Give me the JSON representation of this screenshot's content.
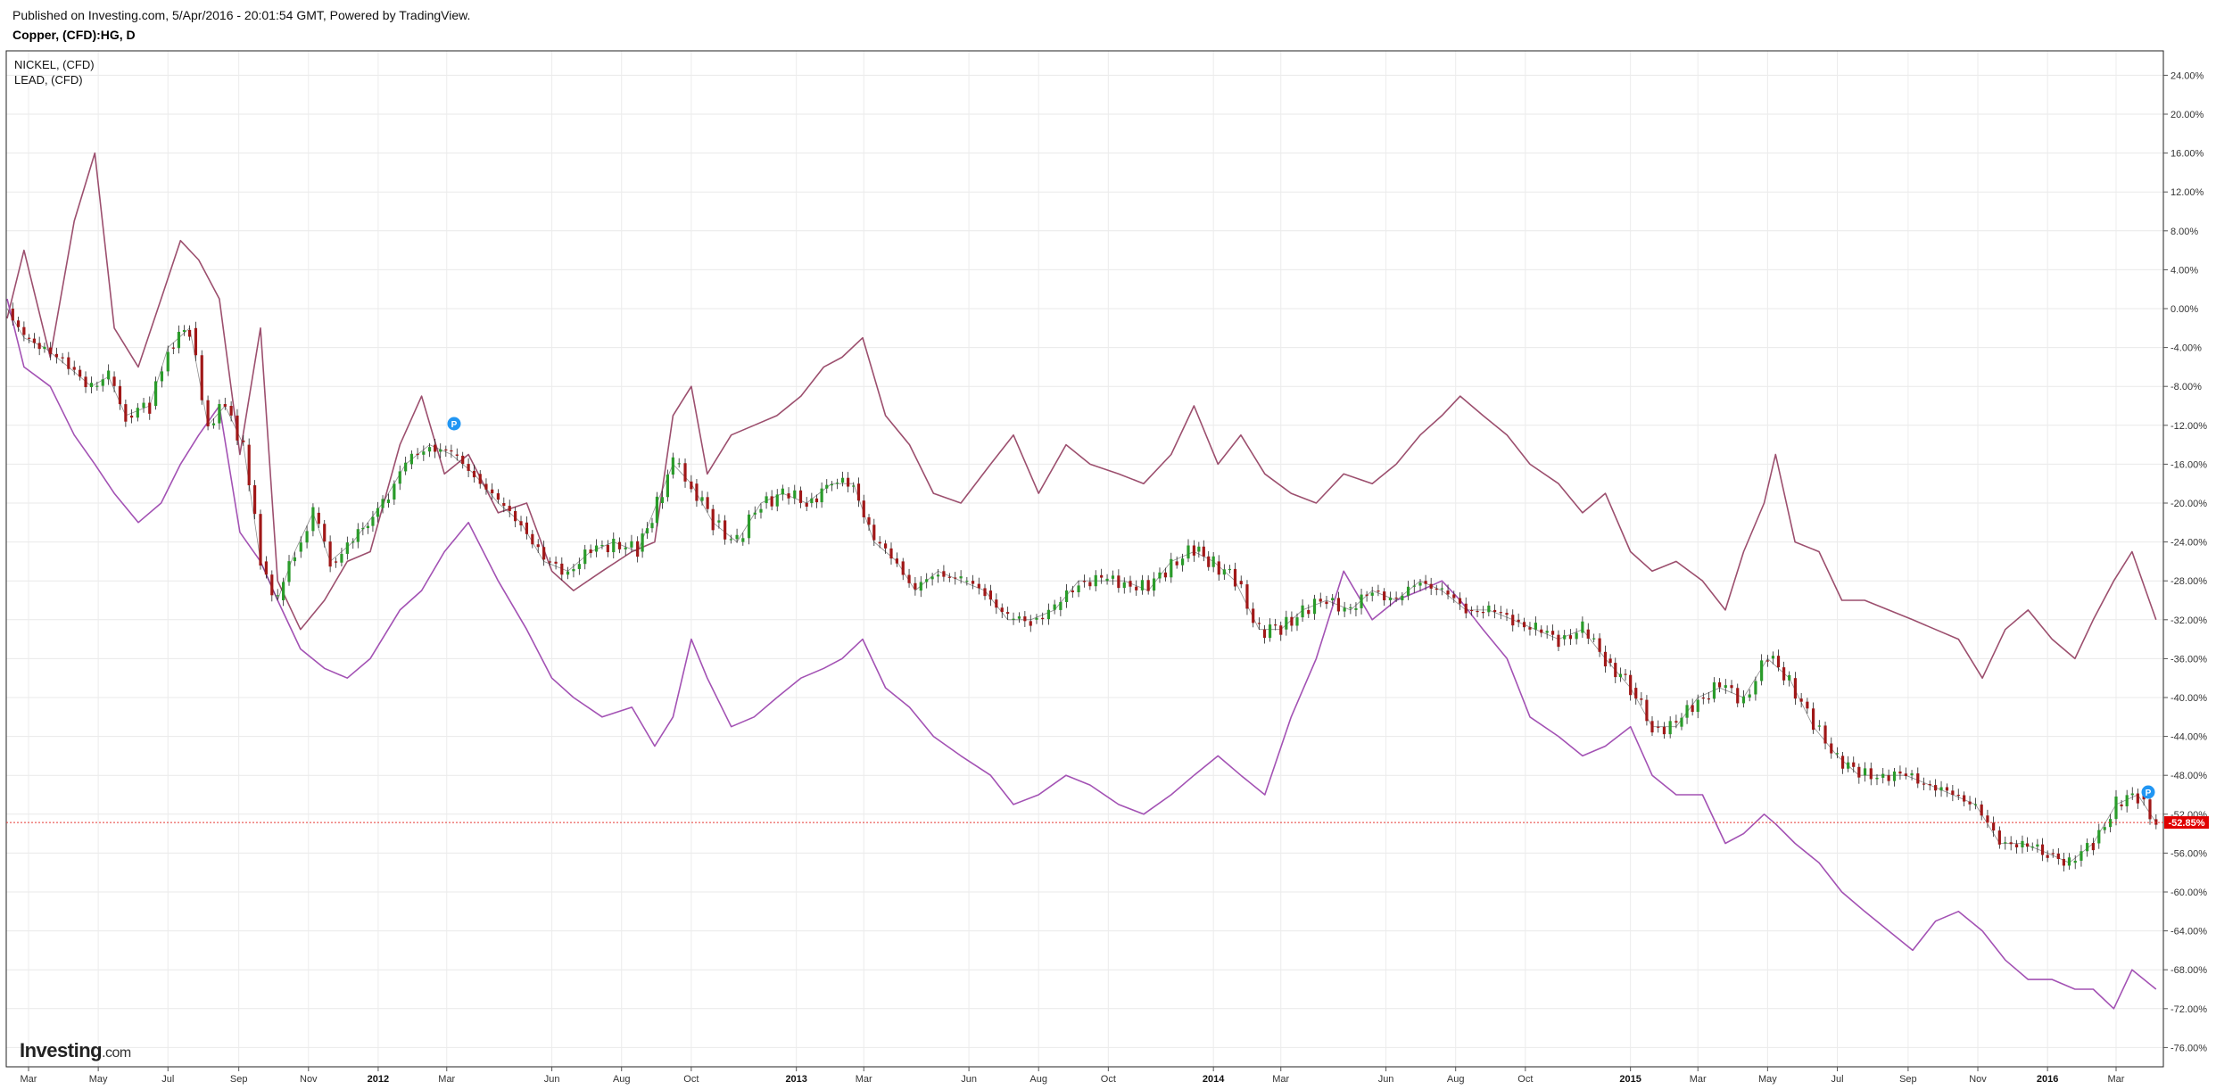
{
  "header": {
    "published": "Published on Investing.com, 5/Apr/2016 - 20:01:54 GMT, Powered by TradingView.",
    "symbol": "Copper, (CFD):HG, D"
  },
  "legend": {
    "items": [
      "NICKEL,  (CFD)",
      "LEAD,  (CFD)"
    ]
  },
  "logo": {
    "brand": "Investing",
    "suffix": ".com"
  },
  "last_value_label": "-52.85%",
  "chart_data": {
    "type": "line",
    "title": "Copper, (CFD):HG, D",
    "xlabel": "",
    "ylabel": "",
    "y_unit": "%",
    "ylim": [
      -78,
      26
    ],
    "y_ticks": [
      24,
      20,
      16,
      12,
      8,
      4,
      0,
      -4,
      -8,
      -12,
      -16,
      -20,
      -24,
      -28,
      -32,
      -36,
      -40,
      -44,
      -48,
      -52,
      -56,
      -60,
      -64,
      -68,
      -72,
      -76
    ],
    "y_tick_labels": [
      "24.00%",
      "20.00%",
      "16.00%",
      "12.00%",
      "8.00%",
      "4.00%",
      "0.00%",
      "-4.00%",
      "-8.00%",
      "-12.00%",
      "-16.00%",
      "-20.00%",
      "-24.00%",
      "-28.00%",
      "-32.00%",
      "-36.00%",
      "-40.00%",
      "-44.00%",
      "-48.00%",
      "-52.00%",
      "-56.00%",
      "-60.00%",
      "-64.00%",
      "-68.00%",
      "-72.00%",
      "-76.00%"
    ],
    "x_ticks": [
      {
        "label": "Mar",
        "date": "2011-03-01"
      },
      {
        "label": "May",
        "date": "2011-05-01"
      },
      {
        "label": "Jul",
        "date": "2011-07-01"
      },
      {
        "label": "Sep",
        "date": "2011-09-01"
      },
      {
        "label": "Nov",
        "date": "2011-11-01"
      },
      {
        "label": "2012",
        "date": "2012-01-01",
        "year": true
      },
      {
        "label": "Mar",
        "date": "2012-03-01"
      },
      {
        "label": "Jun",
        "date": "2012-06-01"
      },
      {
        "label": "Aug",
        "date": "2012-08-01"
      },
      {
        "label": "Oct",
        "date": "2012-10-01"
      },
      {
        "label": "2013",
        "date": "2013-01-01",
        "year": true
      },
      {
        "label": "Mar",
        "date": "2013-03-01"
      },
      {
        "label": "Jun",
        "date": "2013-06-01"
      },
      {
        "label": "Aug",
        "date": "2013-08-01"
      },
      {
        "label": "Oct",
        "date": "2013-10-01"
      },
      {
        "label": "2014",
        "date": "2014-01-01",
        "year": true
      },
      {
        "label": "Mar",
        "date": "2014-03-01"
      },
      {
        "label": "Jun",
        "date": "2014-06-01"
      },
      {
        "label": "Aug",
        "date": "2014-08-01"
      },
      {
        "label": "Oct",
        "date": "2014-10-01"
      },
      {
        "label": "2015",
        "date": "2015-01-01",
        "year": true
      },
      {
        "label": "Mar",
        "date": "2015-03-01"
      },
      {
        "label": "May",
        "date": "2015-05-01"
      },
      {
        "label": "Jul",
        "date": "2015-07-01"
      },
      {
        "label": "Sep",
        "date": "2015-09-01"
      },
      {
        "label": "Nov",
        "date": "2015-11-01"
      },
      {
        "label": "2016",
        "date": "2016-01-01",
        "year": true
      },
      {
        "label": "Mar",
        "date": "2016-03-01"
      }
    ],
    "grid": true,
    "series": [
      {
        "name": "NICKEL,  (CFD)",
        "color": "#9c4f6e",
        "style": "line",
        "x": [
          "2011-02-08",
          "2011-02-25",
          "2011-03-20",
          "2011-04-10",
          "2011-04-28",
          "2011-05-15",
          "2011-06-05",
          "2011-06-25",
          "2011-07-12",
          "2011-07-28",
          "2011-08-15",
          "2011-09-02",
          "2011-09-20",
          "2011-10-05",
          "2011-10-25",
          "2011-11-15",
          "2011-12-05",
          "2011-12-25",
          "2012-01-20",
          "2012-02-08",
          "2012-02-28",
          "2012-03-20",
          "2012-04-15",
          "2012-05-10",
          "2012-06-01",
          "2012-06-20",
          "2012-07-15",
          "2012-08-10",
          "2012-08-30",
          "2012-09-15",
          "2012-10-01",
          "2012-10-15",
          "2012-11-05",
          "2012-11-25",
          "2012-12-15",
          "2013-01-05",
          "2013-01-25",
          "2013-02-10",
          "2013-02-28",
          "2013-03-20",
          "2013-04-10",
          "2013-05-01",
          "2013-05-25",
          "2013-06-20",
          "2013-07-10",
          "2013-08-01",
          "2013-08-25",
          "2013-09-15",
          "2013-10-10",
          "2013-11-01",
          "2013-11-25",
          "2013-12-15",
          "2014-01-05",
          "2014-01-25",
          "2014-02-15",
          "2014-03-10",
          "2014-04-01",
          "2014-04-25",
          "2014-05-20",
          "2014-06-10",
          "2014-07-01",
          "2014-07-20",
          "2014-08-05",
          "2014-08-25",
          "2014-09-15",
          "2014-10-05",
          "2014-10-30",
          "2014-11-20",
          "2014-12-10",
          "2015-01-01",
          "2015-01-20",
          "2015-02-10",
          "2015-03-05",
          "2015-03-25",
          "2015-04-10",
          "2015-04-28",
          "2015-05-08",
          "2015-05-25",
          "2015-06-15",
          "2015-07-05",
          "2015-07-25",
          "2015-08-15",
          "2015-09-05",
          "2015-09-25",
          "2015-10-15",
          "2015-11-05",
          "2015-11-25",
          "2015-12-15",
          "2016-01-05",
          "2016-01-25",
          "2016-02-10",
          "2016-02-28",
          "2016-03-15",
          "2016-04-05"
        ],
        "values": [
          -1,
          6,
          -5,
          9,
          16,
          -2,
          -6,
          1,
          7,
          5,
          1,
          -15,
          -2,
          -28,
          -33,
          -30,
          -26,
          -25,
          -14,
          -9,
          -17,
          -15,
          -21,
          -20,
          -27,
          -29,
          -27,
          -25,
          -24,
          -11,
          -8,
          -17,
          -13,
          -12,
          -11,
          -9,
          -6,
          -5,
          -3,
          -11,
          -14,
          -19,
          -20,
          -16,
          -13,
          -19,
          -14,
          -16,
          -17,
          -18,
          -15,
          -10,
          -16,
          -13,
          -17,
          -19,
          -20,
          -17,
          -18,
          -16,
          -13,
          -11,
          -9,
          -11,
          -13,
          -16,
          -18,
          -21,
          -19,
          -25,
          -27,
          -26,
          -28,
          -31,
          -25,
          -20,
          -15,
          -24,
          -25,
          -30,
          -30,
          -31,
          -32,
          -33,
          -34,
          -38,
          -33,
          -31,
          -34,
          -36,
          -32,
          -28,
          -25,
          -32
        ]
      },
      {
        "name": "LEAD,  (CFD)",
        "color": "#a352b4",
        "style": "line",
        "x": [
          "2011-02-08",
          "2011-02-25",
          "2011-03-20",
          "2011-04-10",
          "2011-04-28",
          "2011-05-15",
          "2011-06-05",
          "2011-06-25",
          "2011-07-12",
          "2011-07-28",
          "2011-08-15",
          "2011-09-02",
          "2011-09-20",
          "2011-10-05",
          "2011-10-25",
          "2011-11-15",
          "2011-12-05",
          "2011-12-25",
          "2012-01-20",
          "2012-02-08",
          "2012-02-28",
          "2012-03-20",
          "2012-04-15",
          "2012-05-10",
          "2012-06-01",
          "2012-06-20",
          "2012-07-15",
          "2012-08-10",
          "2012-08-30",
          "2012-09-15",
          "2012-10-01",
          "2012-10-15",
          "2012-11-05",
          "2012-11-25",
          "2012-12-15",
          "2013-01-05",
          "2013-01-25",
          "2013-02-10",
          "2013-02-28",
          "2013-03-20",
          "2013-04-10",
          "2013-05-01",
          "2013-05-25",
          "2013-06-20",
          "2013-07-10",
          "2013-08-01",
          "2013-08-25",
          "2013-09-15",
          "2013-10-10",
          "2013-11-01",
          "2013-11-25",
          "2013-12-15",
          "2014-01-05",
          "2014-01-25",
          "2014-02-15",
          "2014-03-10",
          "2014-04-01",
          "2014-04-25",
          "2014-05-20",
          "2014-06-10",
          "2014-07-01",
          "2014-07-20",
          "2014-08-05",
          "2014-08-25",
          "2014-09-15",
          "2014-10-05",
          "2014-10-30",
          "2014-11-20",
          "2014-12-10",
          "2015-01-01",
          "2015-01-20",
          "2015-02-10",
          "2015-03-05",
          "2015-03-25",
          "2015-04-10",
          "2015-04-28",
          "2015-05-08",
          "2015-05-25",
          "2015-06-15",
          "2015-07-05",
          "2015-07-25",
          "2015-08-15",
          "2015-09-05",
          "2015-09-25",
          "2015-10-15",
          "2015-11-05",
          "2015-11-25",
          "2015-12-15",
          "2016-01-05",
          "2016-01-25",
          "2016-02-10",
          "2016-02-28",
          "2016-03-15",
          "2016-04-05"
        ],
        "values": [
          1,
          -6,
          -8,
          -13,
          -16,
          -19,
          -22,
          -20,
          -16,
          -13,
          -10,
          -23,
          -26,
          -30,
          -35,
          -37,
          -38,
          -36,
          -31,
          -29,
          -25,
          -22,
          -28,
          -33,
          -38,
          -40,
          -42,
          -41,
          -45,
          -42,
          -34,
          -38,
          -43,
          -42,
          -40,
          -38,
          -37,
          -36,
          -34,
          -39,
          -41,
          -44,
          -46,
          -48,
          -51,
          -50,
          -48,
          -49,
          -51,
          -52,
          -50,
          -48,
          -46,
          -48,
          -50,
          -42,
          -36,
          -27,
          -32,
          -30,
          -29,
          -28,
          -30,
          -33,
          -36,
          -42,
          -44,
          -46,
          -45,
          -43,
          -48,
          -50,
          -50,
          -55,
          -54,
          -52,
          -53,
          -55,
          -57,
          -60,
          -62,
          -64,
          -66,
          -63,
          -62,
          -64,
          -67,
          -69,
          -69,
          -70,
          -70,
          -72,
          -68,
          -70
        ]
      },
      {
        "name": "Copper, (CFD):HG, D",
        "style": "candle",
        "up_color": "#2a9b2a",
        "down_color": "#a01818",
        "x": [
          "2011-02-08",
          "2011-02-25",
          "2011-03-15",
          "2011-04-05",
          "2011-04-25",
          "2011-05-10",
          "2011-05-25",
          "2011-06-15",
          "2011-07-01",
          "2011-07-20",
          "2011-08-05",
          "2011-08-20",
          "2011-09-05",
          "2011-09-20",
          "2011-10-05",
          "2011-10-20",
          "2011-11-05",
          "2011-11-20",
          "2011-12-10",
          "2012-01-05",
          "2012-01-25",
          "2012-02-15",
          "2012-03-05",
          "2012-03-25",
          "2012-04-15",
          "2012-05-05",
          "2012-05-25",
          "2012-06-15",
          "2012-07-05",
          "2012-07-25",
          "2012-08-15",
          "2012-09-01",
          "2012-09-15",
          "2012-10-01",
          "2012-10-20",
          "2012-11-10",
          "2012-12-01",
          "2012-12-20",
          "2013-01-10",
          "2013-02-01",
          "2013-02-20",
          "2013-03-10",
          "2013-03-30",
          "2013-04-15",
          "2013-05-05",
          "2013-05-25",
          "2013-06-15",
          "2013-07-05",
          "2013-07-25",
          "2013-08-15",
          "2013-09-05",
          "2013-09-25",
          "2013-10-15",
          "2013-11-05",
          "2013-11-25",
          "2013-12-15",
          "2014-01-01",
          "2014-01-20",
          "2014-02-10",
          "2014-03-01",
          "2014-03-20",
          "2014-04-10",
          "2014-05-01",
          "2014-05-20",
          "2014-06-10",
          "2014-07-01",
          "2014-07-20",
          "2014-08-10",
          "2014-08-30",
          "2014-09-20",
          "2014-10-10",
          "2014-10-30",
          "2014-11-20",
          "2014-12-10",
          "2015-01-01",
          "2015-01-20",
          "2015-02-10",
          "2015-03-01",
          "2015-03-20",
          "2015-04-10",
          "2015-05-01",
          "2015-05-20",
          "2015-06-10",
          "2015-07-01",
          "2015-07-20",
          "2015-08-10",
          "2015-08-30",
          "2015-09-20",
          "2015-10-10",
          "2015-10-30",
          "2015-11-20",
          "2015-12-10",
          "2016-01-01",
          "2016-01-20",
          "2016-02-10",
          "2016-03-01",
          "2016-03-20",
          "2016-04-05"
        ],
        "values": [
          0,
          -3,
          -4,
          -6,
          -8,
          -7,
          -11,
          -10,
          -4,
          -2,
          -12,
          -10,
          -14,
          -26,
          -30,
          -25,
          -21,
          -26,
          -24,
          -20,
          -16,
          -14,
          -15,
          -17,
          -20,
          -22,
          -26,
          -27,
          -25,
          -24,
          -25,
          -20,
          -16,
          -18,
          -22,
          -24,
          -20,
          -19,
          -20,
          -18,
          -18,
          -24,
          -26,
          -29,
          -27,
          -28,
          -29,
          -32,
          -32,
          -31,
          -28,
          -28,
          -28,
          -29,
          -26,
          -25,
          -26,
          -28,
          -33,
          -33,
          -31,
          -30,
          -31,
          -29,
          -30,
          -28,
          -29,
          -31,
          -31,
          -32,
          -33,
          -34,
          -33,
          -36,
          -39,
          -43,
          -43,
          -40,
          -39,
          -40,
          -36,
          -38,
          -43,
          -46,
          -48,
          -48,
          -48,
          -49,
          -50,
          -51,
          -55,
          -55,
          -56,
          -57,
          -55,
          -51,
          -50,
          -52.85
        ]
      }
    ]
  }
}
